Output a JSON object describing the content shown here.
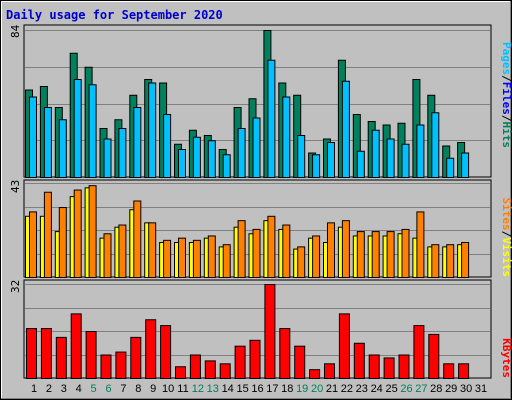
{
  "title": "Daily usage for September 2020",
  "colors": {
    "background": "#c0c0c0",
    "grid": "#808080",
    "hits": "#00805c",
    "files": "#00c0ff",
    "pages": "#00c0ff",
    "visits": "#ff8000",
    "sites": "#ffff00",
    "kbytes": "#ff0000",
    "weekday_label": "#000000",
    "weekend_label": "#00805c",
    "title": "#0000cc"
  },
  "chart_data": [
    {
      "type": "bar",
      "panel": "hits-files-pages",
      "side_label": [
        "Pages",
        "/",
        "Files",
        "/",
        "Hits"
      ],
      "scale_max_label": "84",
      "ylim": [
        0,
        84
      ],
      "categories": [
        "1",
        "2",
        "3",
        "4",
        "5",
        "6",
        "7",
        "8",
        "9",
        "10",
        "11",
        "12",
        "13",
        "14",
        "15",
        "16",
        "17",
        "18",
        "19",
        "20",
        "21",
        "22",
        "23",
        "24",
        "25",
        "26",
        "27",
        "28",
        "29",
        "30",
        "31"
      ],
      "series": [
        {
          "name": "Hits",
          "values": [
            50,
            52,
            40,
            71,
            63,
            28,
            33,
            47,
            56,
            54,
            19,
            27,
            24,
            16,
            40,
            45,
            84,
            54,
            47,
            14,
            22,
            67,
            36,
            32,
            30,
            31,
            56,
            47,
            18,
            20,
            0
          ]
        },
        {
          "name": "Files",
          "values": [
            46,
            40,
            33,
            56,
            53,
            22,
            28,
            40,
            54,
            36,
            16,
            23,
            21,
            13,
            28,
            34,
            67,
            46,
            24,
            13,
            20,
            55,
            15,
            27,
            22,
            19,
            30,
            37,
            11,
            14,
            0
          ]
        }
      ]
    },
    {
      "type": "bar",
      "panel": "sites-visits",
      "side_label": [
        "Sites",
        "/",
        "Visits"
      ],
      "scale_max_label": "43",
      "ylim": [
        0,
        43
      ],
      "categories": [
        "1",
        "2",
        "3",
        "4",
        "5",
        "6",
        "7",
        "8",
        "9",
        "10",
        "11",
        "12",
        "13",
        "14",
        "15",
        "16",
        "17",
        "18",
        "19",
        "20",
        "21",
        "22",
        "23",
        "24",
        "25",
        "26",
        "27",
        "28",
        "29",
        "30",
        "31"
      ],
      "series": [
        {
          "name": "Visits",
          "values": [
            30,
            39,
            32,
            40,
            42,
            20,
            24,
            35,
            25,
            17,
            18,
            17,
            19,
            15,
            26,
            22,
            28,
            24,
            14,
            19,
            25,
            26,
            21,
            21,
            21,
            22,
            30,
            15,
            15,
            16,
            0
          ]
        },
        {
          "name": "Sites",
          "values": [
            28,
            28,
            21,
            37,
            41,
            18,
            23,
            31,
            25,
            16,
            16,
            16,
            18,
            14,
            23,
            20,
            26,
            22,
            13,
            18,
            16,
            23,
            19,
            19,
            19,
            20,
            18,
            14,
            14,
            15,
            0
          ]
        }
      ]
    },
    {
      "type": "bar",
      "panel": "kbytes",
      "side_label": [
        "KBytes"
      ],
      "scale_max_label": "32",
      "ylim": [
        0,
        32
      ],
      "categories": [
        "1",
        "2",
        "3",
        "4",
        "5",
        "6",
        "7",
        "8",
        "9",
        "10",
        "11",
        "12",
        "13",
        "14",
        "15",
        "16",
        "17",
        "18",
        "19",
        "20",
        "21",
        "22",
        "23",
        "24",
        "25",
        "26",
        "27",
        "28",
        "29",
        "30",
        "31"
      ],
      "series": [
        {
          "name": "KBytes",
          "values": [
            17,
            17,
            14,
            22,
            16,
            8,
            9,
            14,
            20,
            18,
            4,
            8,
            6,
            5,
            11,
            13,
            32,
            17,
            11,
            3,
            5,
            22,
            12,
            8,
            7,
            8,
            18,
            15,
            5,
            5,
            0
          ]
        }
      ]
    }
  ],
  "x_labels": [
    {
      "text": "1",
      "weekend": false
    },
    {
      "text": "2",
      "weekend": false
    },
    {
      "text": "3",
      "weekend": false
    },
    {
      "text": "4",
      "weekend": false
    },
    {
      "text": "5",
      "weekend": true
    },
    {
      "text": "6",
      "weekend": true
    },
    {
      "text": "7",
      "weekend": false
    },
    {
      "text": "8",
      "weekend": false
    },
    {
      "text": "9",
      "weekend": false
    },
    {
      "text": "10",
      "weekend": false
    },
    {
      "text": "11",
      "weekend": false
    },
    {
      "text": "12",
      "weekend": true
    },
    {
      "text": "13",
      "weekend": true
    },
    {
      "text": "14",
      "weekend": false
    },
    {
      "text": "15",
      "weekend": false
    },
    {
      "text": "16",
      "weekend": false
    },
    {
      "text": "17",
      "weekend": false
    },
    {
      "text": "18",
      "weekend": false
    },
    {
      "text": "19",
      "weekend": true
    },
    {
      "text": "20",
      "weekend": true
    },
    {
      "text": "21",
      "weekend": false
    },
    {
      "text": "22",
      "weekend": false
    },
    {
      "text": "23",
      "weekend": false
    },
    {
      "text": "24",
      "weekend": false
    },
    {
      "text": "25",
      "weekend": false
    },
    {
      "text": "26",
      "weekend": true
    },
    {
      "text": "27",
      "weekend": true
    },
    {
      "text": "28",
      "weekend": false
    },
    {
      "text": "29",
      "weekend": false
    },
    {
      "text": "30",
      "weekend": false
    },
    {
      "text": "31",
      "weekend": false
    }
  ]
}
